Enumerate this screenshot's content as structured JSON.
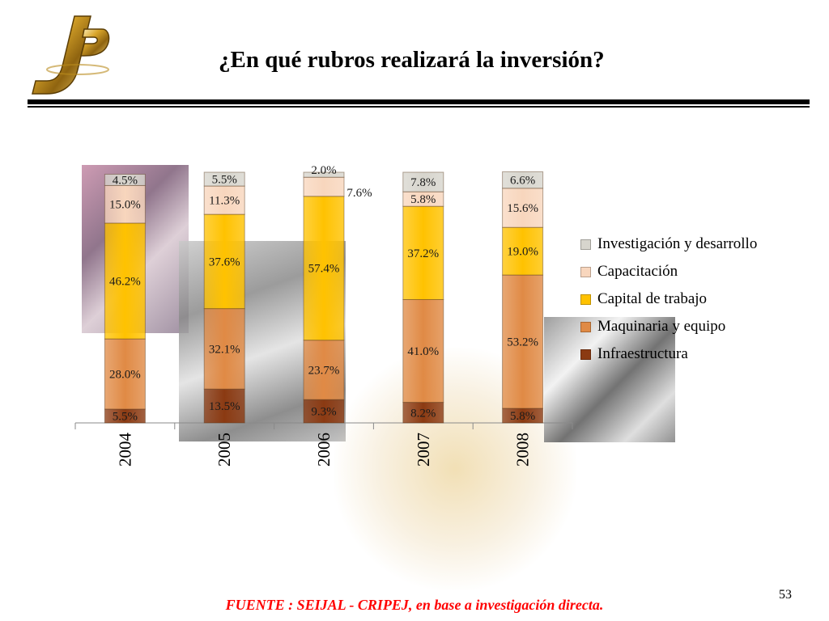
{
  "header": {
    "title": "¿En qué rubros realizará la inversión?"
  },
  "footer": {
    "source": "FUENTE :  SEIJAL - CRIPEJ,  en base a investigación directa.",
    "page_number": "53"
  },
  "chart_data": {
    "type": "bar",
    "stacked": true,
    "normalized": true,
    "categories": [
      "2004",
      "2005",
      "2006",
      "2007",
      "2008"
    ],
    "series": [
      {
        "name": "Infraestructura",
        "color": "#8b3a12",
        "values": [
          5.5,
          13.5,
          9.3,
          8.2,
          5.8
        ],
        "labels": [
          "5.5%",
          "13.5%",
          "9.3%",
          "8.2%",
          "5.8%"
        ]
      },
      {
        "name": "Maquinaria y equipo",
        "color": "#e08a45",
        "values": [
          28.0,
          32.1,
          23.7,
          41.0,
          53.2
        ],
        "labels": [
          "28.0%",
          "32.1%",
          "23.7%",
          "41.0%",
          "53.2%"
        ]
      },
      {
        "name": "Capital de trabajo",
        "color": "#ffc200",
        "values": [
          46.2,
          37.6,
          57.4,
          37.2,
          19.0
        ],
        "labels": [
          "46.2%",
          "37.6%",
          "57.4%",
          "37.2%",
          "19.0%"
        ]
      },
      {
        "name": "Capacitación",
        "color": "#f8d6bd",
        "values": [
          15.0,
          11.3,
          7.6,
          5.8,
          15.6
        ],
        "labels": [
          "15.0%",
          "11.3%",
          "7.6%",
          "5.8%",
          "15.6%"
        ]
      },
      {
        "name": "Investigación y desarrollo",
        "color": "#d7d5cd",
        "values": [
          4.5,
          5.5,
          2.0,
          7.8,
          6.6
        ],
        "labels": [
          "4.5%",
          "5.5%",
          "2.0%",
          "7.8%",
          "6.6%"
        ]
      }
    ],
    "legend_order": [
      "Investigación y desarrollo",
      "Capacitación",
      "Capital de trabajo",
      "Maquinaria y equipo",
      "Infraestructura"
    ],
    "legend_position": "right",
    "xlabel": "",
    "ylabel": "",
    "ylim": [
      0,
      100
    ],
    "grid": false
  }
}
